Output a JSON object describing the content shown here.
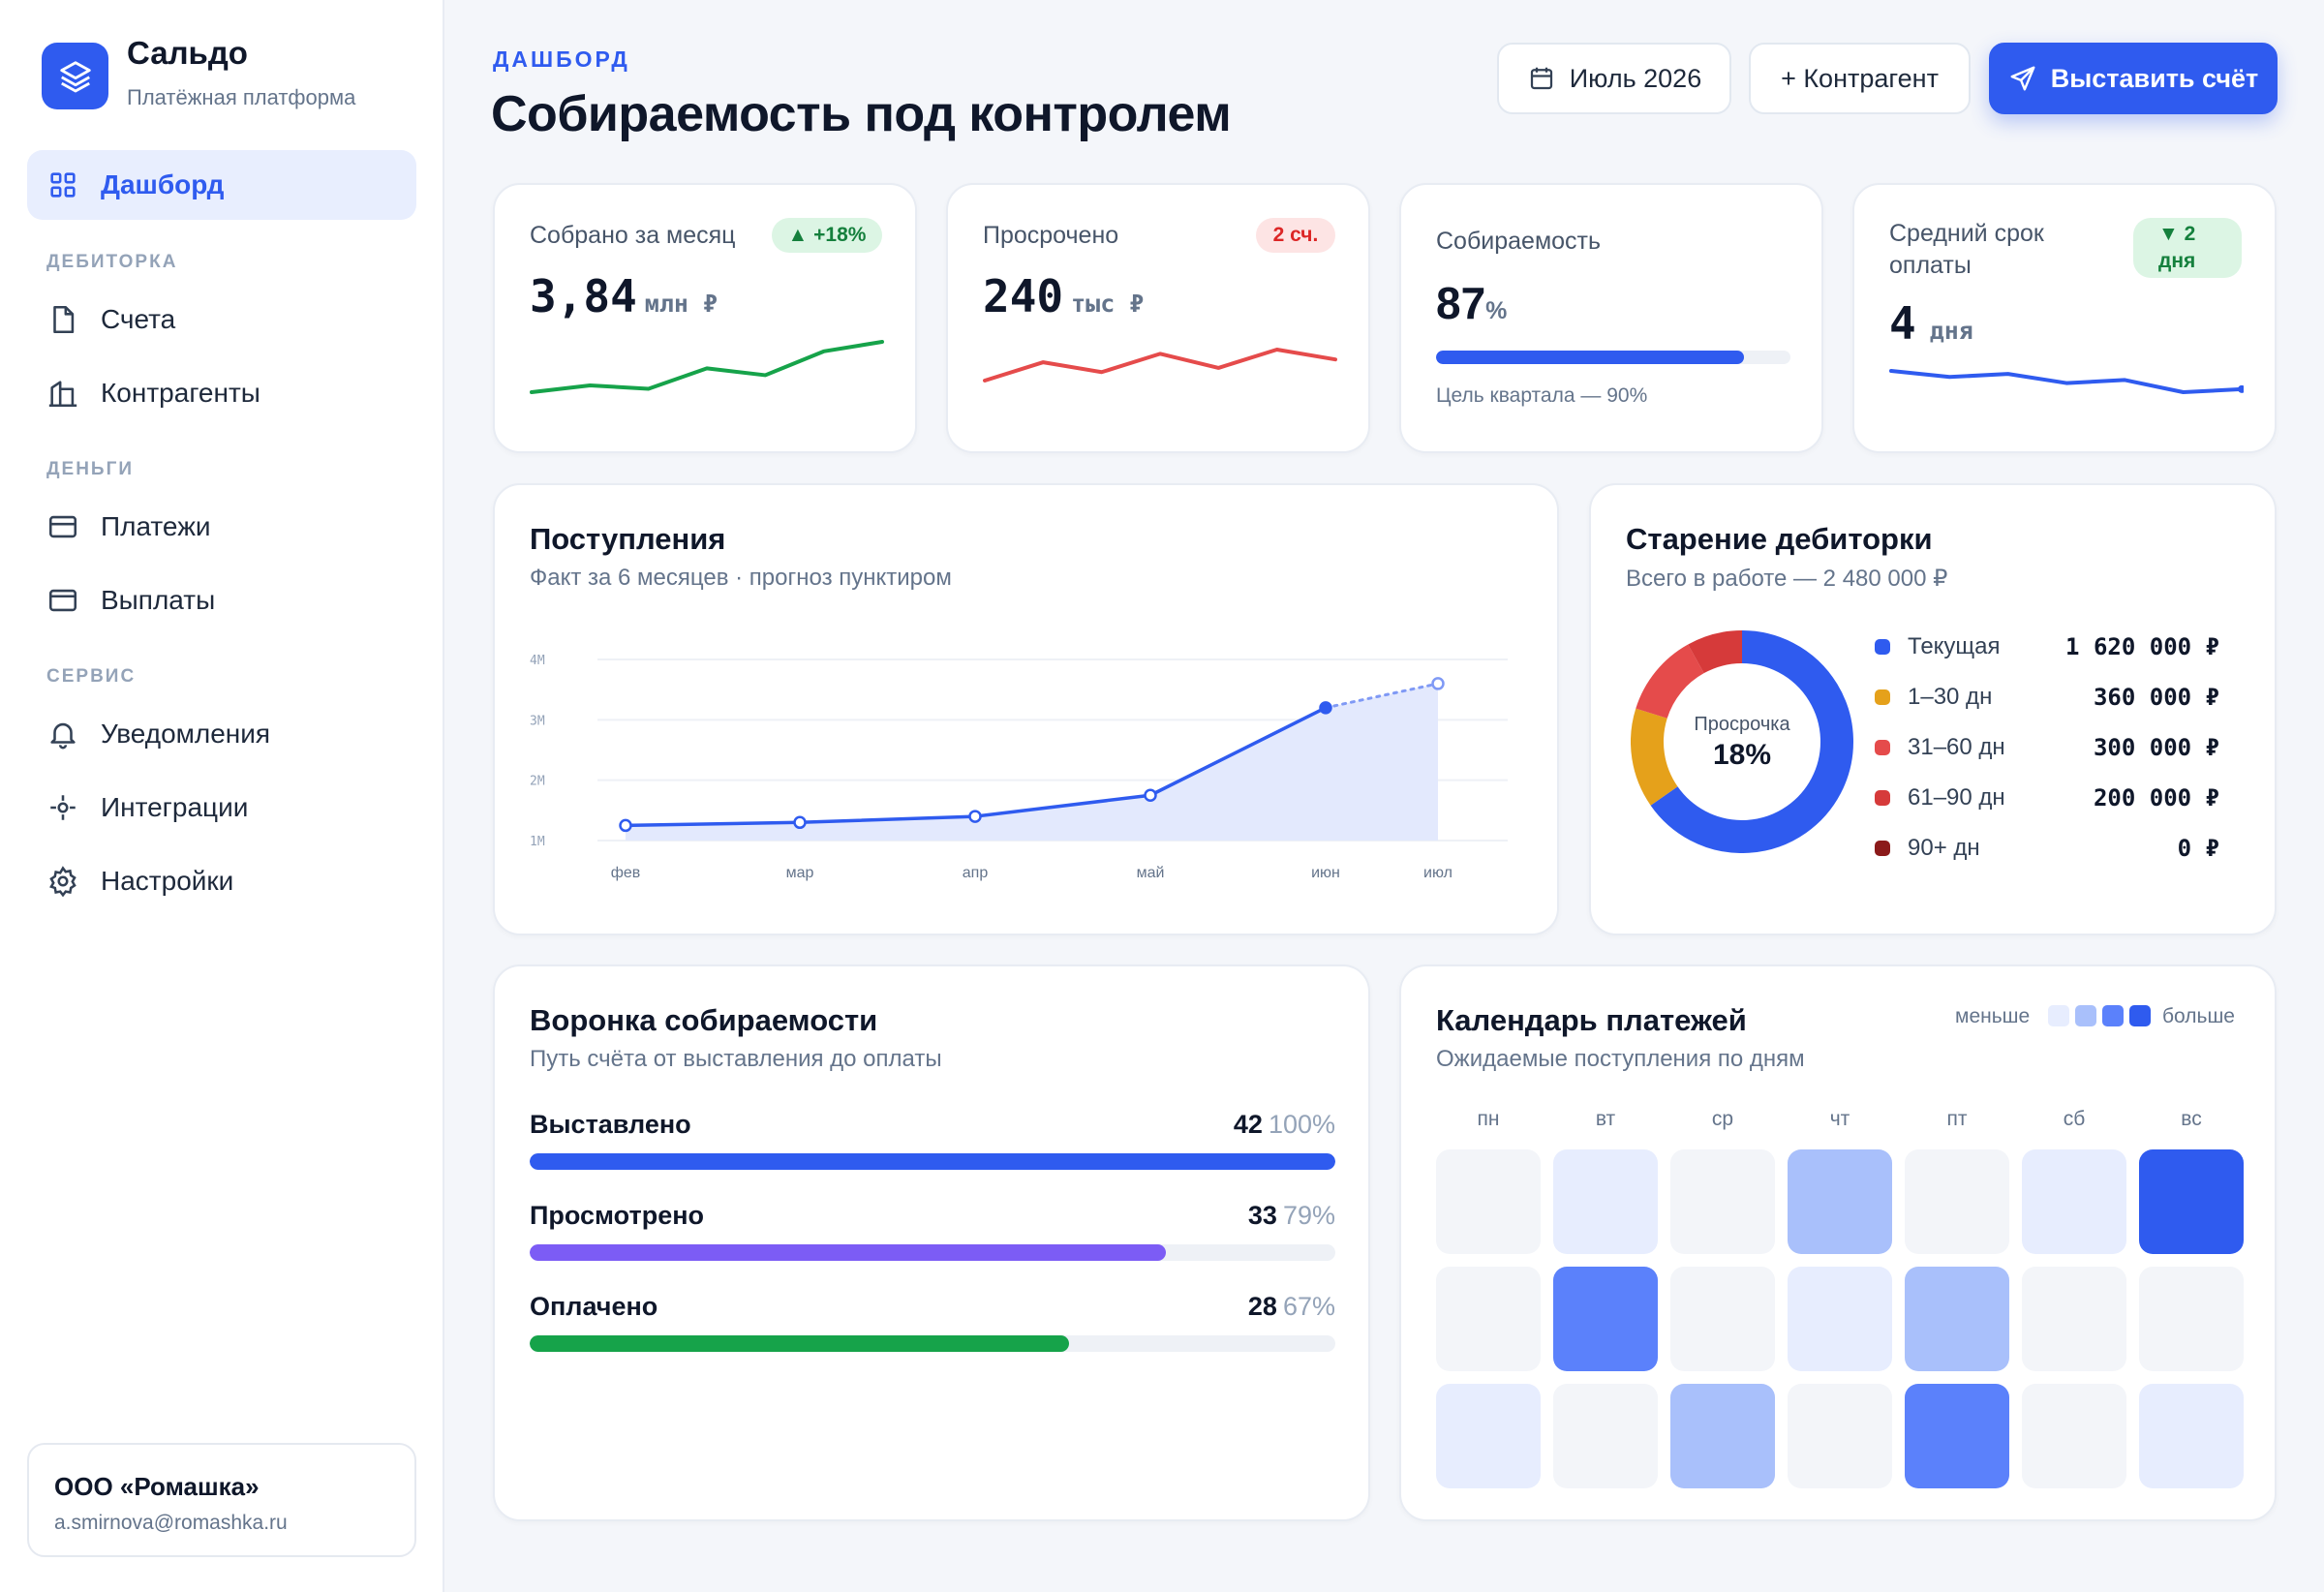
{
  "brand": {
    "name": "Сальдо",
    "subtitle": "Платёжная платформа"
  },
  "nav": {
    "dashboard": "Дашборд",
    "group_receivables": "ДЕБИТОРКА",
    "invoices": "Счета",
    "counterparties": "Контрагенты",
    "group_money": "ДЕНЬГИ",
    "payments": "Платежи",
    "payouts": "Выплаты",
    "group_service": "СЕРВИС",
    "notifications": "Уведомления",
    "integrations": "Интеграции",
    "settings": "Настройки"
  },
  "org": {
    "name": "ООО «Ромашка»",
    "email": "a.smirnova@romashka.ru"
  },
  "header": {
    "eyebrow": "ДАШБОРД",
    "title": "Собираемость под контролем",
    "period": "Июль 2026",
    "add_counterparty": "+ Контрагент",
    "issue_invoice": "Выставить счёт"
  },
  "kpis": {
    "collected": {
      "label": "Собрано за месяц",
      "badge": "▲ +18%",
      "value": "3,84",
      "unit": "млн ₽",
      "trend": [
        3.1,
        3.2,
        3.15,
        3.45,
        3.35,
        3.7,
        3.84
      ]
    },
    "overdue": {
      "label": "Просрочено",
      "badge": "2 сч.",
      "value": "240",
      "unit": "тыс ₽",
      "trend": [
        232,
        245,
        238,
        251,
        241,
        254,
        247
      ]
    },
    "rate": {
      "label": "Собираемость",
      "value": "87",
      "unit": "%",
      "progress": 87,
      "goal": "Цель квартала — 90%"
    },
    "avg_term": {
      "label": "Средний срок оплаты",
      "badge": "▼ 2 дня",
      "value": "4",
      "unit": "дня",
      "trend": [
        5.1,
        4.9,
        5.0,
        4.7,
        4.8,
        4.4,
        4.5
      ]
    }
  },
  "income": {
    "title": "Поступления",
    "subtitle": "Факт за 6 месяцев · прогноз пунктиром",
    "chart_data": {
      "type": "area",
      "x": [
        "фев",
        "мар",
        "апр",
        "май",
        "июн",
        "июл"
      ],
      "y_ticks": [
        "1M",
        "2M",
        "3M",
        "4M"
      ],
      "ylim": [
        1,
        4
      ],
      "values": [
        1.25,
        1.3,
        1.4,
        1.75,
        3.2,
        3.6
      ],
      "forecast_from_index": 4
    }
  },
  "aging": {
    "title": "Старение дебиторки",
    "subtitle": "Всего в работе — 2 480 000 ₽",
    "center_label": "Просрочка",
    "center_value": "18%",
    "chart_data": {
      "type": "pie",
      "categories": [
        "Текущая",
        "1–30 дн",
        "31–60 дн",
        "61–90 дн",
        "90+ дн"
      ],
      "values": [
        1620000,
        360000,
        300000,
        200000,
        0
      ],
      "labels": [
        "1 620 000 ₽",
        "360 000 ₽",
        "300 000 ₽",
        "200 000 ₽",
        "0 ₽"
      ],
      "colors": [
        "#2f5bef",
        "#e5a11b",
        "#e54b4b",
        "#d63a3a",
        "#8b1a1a"
      ]
    }
  },
  "funnel": {
    "title": "Воронка собираемости",
    "subtitle": "Путь счёта от выставления до оплаты",
    "rows": [
      {
        "label": "Выставлено",
        "count": "42",
        "pct": "100%",
        "value": 100,
        "color": "#2f5bef"
      },
      {
        "label": "Просмотрено",
        "count": "33",
        "pct": "79%",
        "value": 79,
        "color": "#7c5cf5"
      },
      {
        "label": "Оплачено",
        "count": "28",
        "pct": "67%",
        "value": 67,
        "color": "#16a34a"
      }
    ]
  },
  "calendar": {
    "title": "Календарь платежей",
    "subtitle": "Ожидаемые поступления по дням",
    "scale_less": "меньше",
    "scale_more": "больше",
    "days": [
      "пн",
      "вт",
      "ср",
      "чт",
      "пт",
      "сб",
      "вс"
    ],
    "levels": [
      [
        0,
        1,
        0,
        2,
        0,
        1,
        4
      ],
      [
        0,
        3,
        0,
        1,
        2,
        0,
        0
      ],
      [
        1,
        0,
        2,
        0,
        3,
        0,
        1
      ]
    ],
    "level_colors": [
      "#f3f5f9",
      "#e7edfe",
      "#a9c0fb",
      "#5b81fb",
      "#2f5bef"
    ]
  }
}
